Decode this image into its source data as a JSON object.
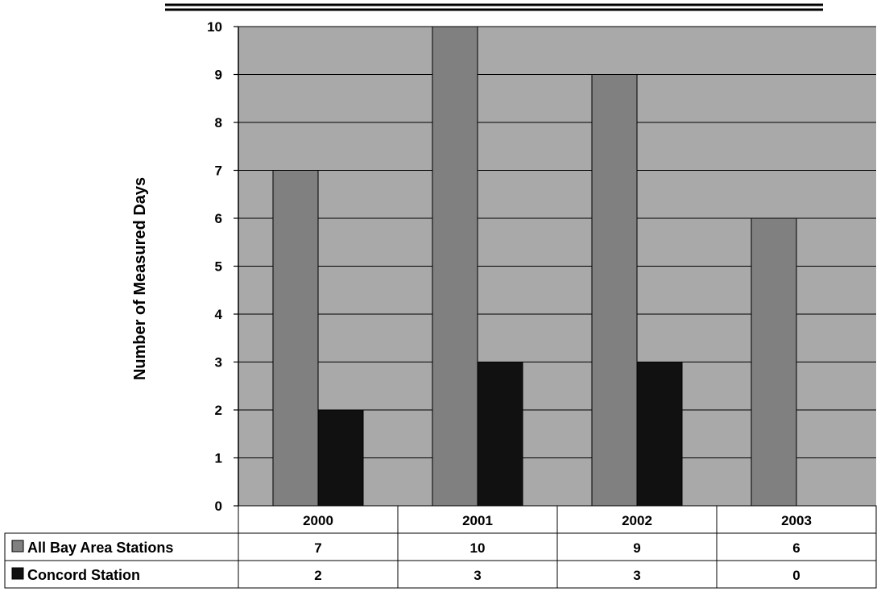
{
  "chart_data": {
    "type": "bar",
    "title": "",
    "xlabel": "",
    "ylabel": "Number of Measured Days",
    "ylim": [
      0,
      10
    ],
    "yticks": [
      0,
      1,
      2,
      3,
      4,
      5,
      6,
      7,
      8,
      9,
      10
    ],
    "grid": true,
    "legend": "data-table-left",
    "categories": [
      "2000",
      "2001",
      "2002",
      "2003"
    ],
    "series": [
      {
        "name": "All Bay Area Stations",
        "values": [
          7,
          10,
          9,
          6
        ],
        "color": "#808080"
      },
      {
        "name": "Concord Station",
        "values": [
          2,
          3,
          3,
          0
        ],
        "color": "#111111"
      }
    ],
    "plot_background": "#a9a9a9"
  }
}
